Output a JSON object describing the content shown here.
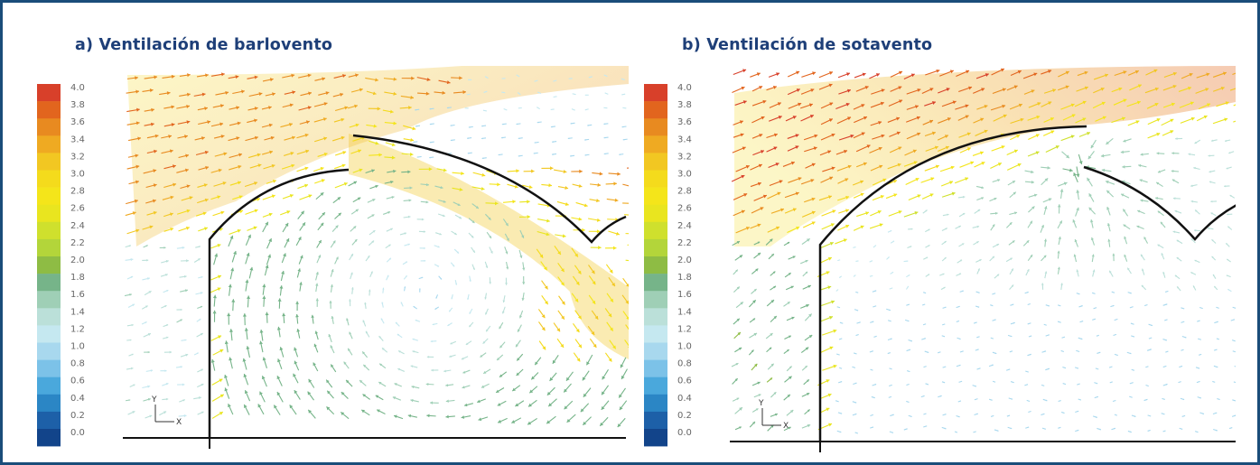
{
  "panels": [
    {
      "id": "a",
      "title": "a) Ventilación de barlovento"
    },
    {
      "id": "b",
      "title": "b) Ventilación de sotavento"
    }
  ],
  "colorbar": {
    "labels": [
      "4.0",
      "3.8",
      "3.6",
      "3.4",
      "3.2",
      "3.0",
      "2.8",
      "2.6",
      "2.4",
      "2.2",
      "2.0",
      "1.8",
      "1.6",
      "1.4",
      "1.2",
      "1.0",
      "0.8",
      "0.6",
      "0.4",
      "0.2",
      "0.0"
    ],
    "colors": [
      "#d8402a",
      "#e2651e",
      "#e88a20",
      "#efaa22",
      "#f2c722",
      "#f4db1c",
      "#f4e51a",
      "#e9e51f",
      "#cfe02d",
      "#b3d53a",
      "#8ebc44",
      "#76b489",
      "#9fcfb6",
      "#bbe0d9",
      "#c5e8f0",
      "#a8d8ee",
      "#7cc2e8",
      "#4aa8dc",
      "#2b86c5",
      "#1d60a8",
      "#12448a"
    ]
  },
  "axis_glyph": {
    "y": "Y",
    "x": "X"
  }
}
